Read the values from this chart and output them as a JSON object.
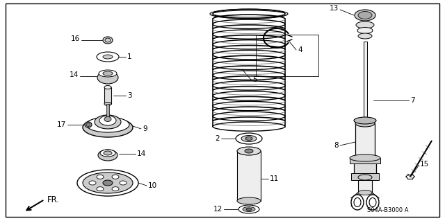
{
  "bg_color": "#ffffff",
  "line_color": "#000000",
  "fig_width": 6.4,
  "fig_height": 3.19,
  "dpi": 100,
  "watermark": "S04A-B3000 A",
  "direction_label": "FR."
}
